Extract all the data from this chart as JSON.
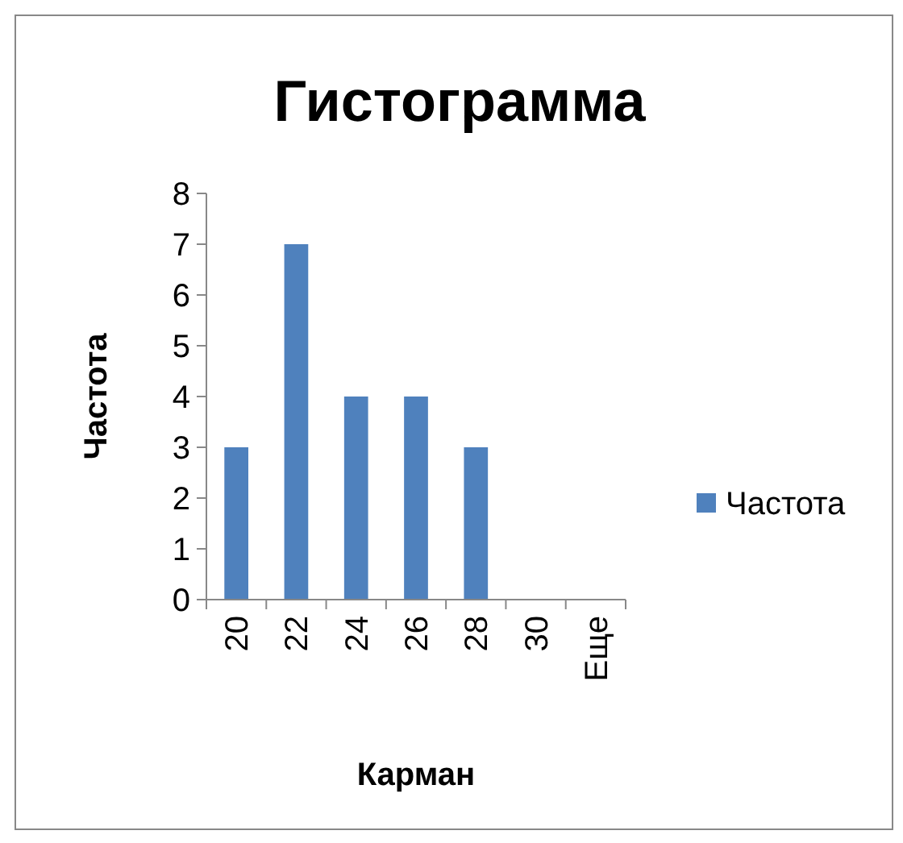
{
  "chart_data": {
    "type": "bar",
    "title": "Гистограмма",
    "xlabel": "Карман",
    "ylabel": "Частота",
    "categories": [
      "20",
      "22",
      "24",
      "26",
      "28",
      "30",
      "Еще"
    ],
    "series": [
      {
        "name": "Частота",
        "color": "#4f81bd",
        "values": [
          3,
          7,
          4,
          4,
          3,
          0,
          0
        ]
      }
    ],
    "ylim": [
      0,
      8
    ],
    "yticks": [
      0,
      1,
      2,
      3,
      4,
      5,
      6,
      7,
      8
    ],
    "grid": false,
    "legend": "right"
  }
}
